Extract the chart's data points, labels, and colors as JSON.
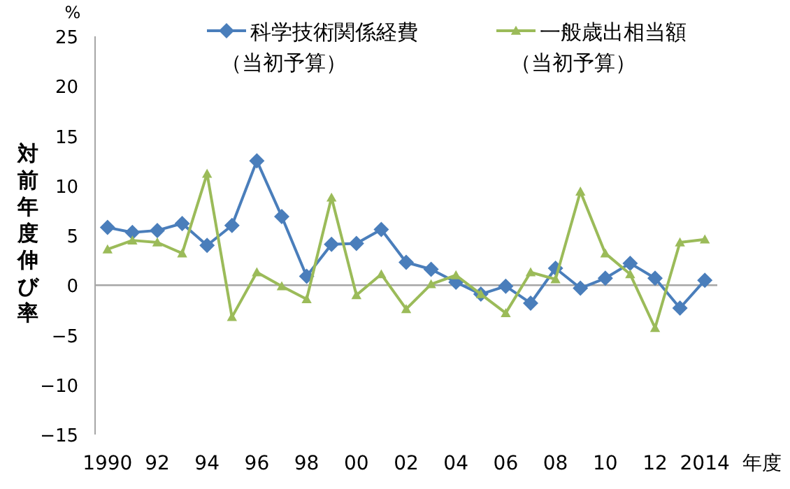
{
  "chart_data": {
    "type": "line",
    "ylabel": "対前年度伸び率",
    "xlabel": "年度",
    "annotations": [
      "%"
    ],
    "categories": [
      "1990",
      null,
      "92",
      null,
      "94",
      null,
      "96",
      null,
      "98",
      null,
      "00",
      null,
      "02",
      null,
      "04",
      null,
      "06",
      null,
      "08",
      null,
      "10",
      null,
      "12",
      null,
      "2014"
    ],
    "ylim": [
      -15,
      25
    ],
    "yticks": [
      -15,
      -10,
      -5,
      0,
      5,
      10,
      15,
      20,
      25
    ],
    "legend": "top",
    "line_style": "solid",
    "series": [
      {
        "name": "科学技術関係経費（当初予算）",
        "color": "#4a7ebb",
        "marker": "diamond",
        "values": [
          5.8,
          5.3,
          5.5,
          6.2,
          4.0,
          6.0,
          12.5,
          6.9,
          0.9,
          4.1,
          4.2,
          5.6,
          2.3,
          1.6,
          0.3,
          -0.9,
          -0.1,
          -1.8,
          1.7,
          -0.3,
          0.7,
          2.2,
          0.7,
          -2.3,
          0.5
        ]
      },
      {
        "name": "一般歳出相当額（当初予算）",
        "color": "#9bbb59",
        "marker": "triangle",
        "values": [
          3.6,
          4.5,
          4.3,
          3.2,
          11.2,
          -3.2,
          1.3,
          -0.1,
          -1.4,
          8.8,
          -1.0,
          1.1,
          -2.4,
          0.1,
          1.0,
          -0.9,
          -2.8,
          1.3,
          0.6,
          9.4,
          3.2,
          1.1,
          -4.3,
          4.3,
          4.6
        ]
      }
    ]
  }
}
